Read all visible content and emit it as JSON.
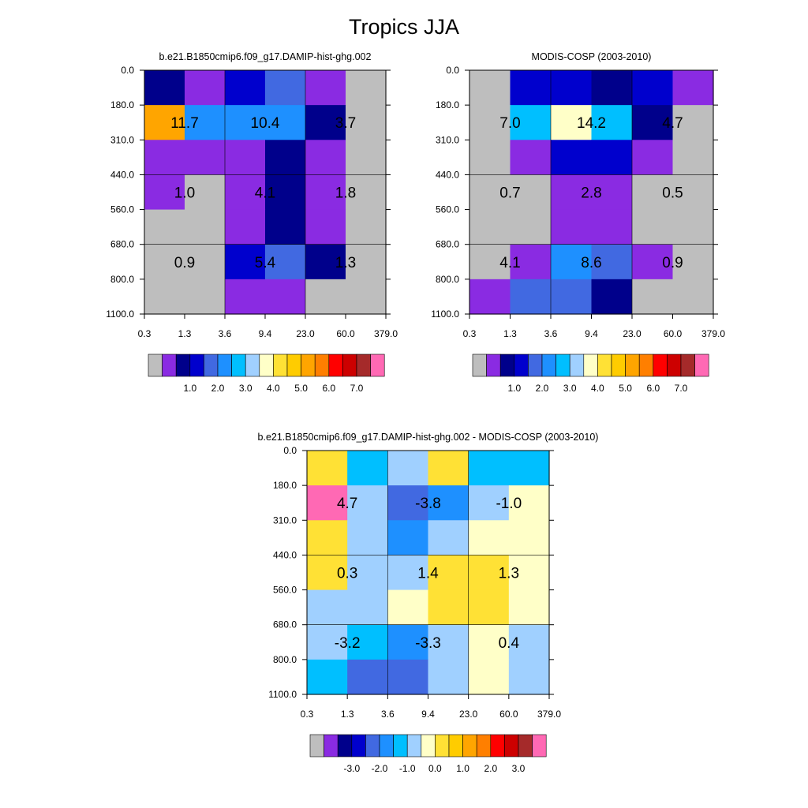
{
  "figure": {
    "title": "Tropics JJA"
  },
  "palettes": {
    "abs": [
      "#bebebe",
      "#8a2be2",
      "#00008b",
      "#0000cd",
      "#4169e1",
      "#1e90ff",
      "#00bfff",
      "#a0d0ff",
      "#ffffc8",
      "#ffe135",
      "#ffcc00",
      "#ffa500",
      "#ff7f00",
      "#ff0000",
      "#cd0000",
      "#a52a2a",
      "#ff69b4"
    ],
    "diff": [
      "#bebebe",
      "#8a2be2",
      "#00008b",
      "#0000cd",
      "#4169e1",
      "#1e90ff",
      "#00bfff",
      "#a0d0ff",
      "#ffffc8",
      "#ffe135",
      "#ffcc00",
      "#ffa500",
      "#ff7f00",
      "#ff0000",
      "#cd0000",
      "#a52a2a",
      "#ff69b4"
    ]
  },
  "chart_data": [
    {
      "type": "heatmap",
      "id": "model",
      "title": "b.e21.B1850cmip6.f09_g17.DAMIP-hist-ghg.002",
      "x_ticks": [
        "0.3",
        "1.3",
        "3.6",
        "9.4",
        "23.0",
        "60.0",
        "379.0"
      ],
      "y_ticks": [
        "0.0",
        "180.0",
        "310.0",
        "440.0",
        "560.0",
        "680.0",
        "800.0",
        "1100.0"
      ],
      "cells": [
        [
          2,
          1,
          3,
          4,
          1,
          0
        ],
        [
          11,
          5,
          5,
          5,
          2,
          0
        ],
        [
          1,
          1,
          1,
          2,
          1,
          0
        ],
        [
          1,
          0,
          1,
          2,
          1,
          0
        ],
        [
          0,
          0,
          1,
          2,
          1,
          0
        ],
        [
          0,
          0,
          3,
          4,
          2,
          0
        ],
        [
          0,
          0,
          1,
          1,
          0,
          0
        ]
      ],
      "box_labels": [
        "11.7",
        "10.4",
        "3.7",
        "1.0",
        "4.1",
        "1.8",
        "0.9",
        "5.4",
        "1.3"
      ],
      "colorbar_palette": "abs",
      "colorbar_labels": [
        "1.0",
        "2.0",
        "3.0",
        "4.0",
        "5.0",
        "6.0",
        "7.0"
      ]
    },
    {
      "type": "heatmap",
      "id": "obs",
      "title": "MODIS-COSP (2003-2010)",
      "x_ticks": [
        "0.3",
        "1.3",
        "3.6",
        "9.4",
        "23.0",
        "60.0",
        "379.0"
      ],
      "y_ticks": [
        "0.0",
        "180.0",
        "310.0",
        "440.0",
        "560.0",
        "680.0",
        "800.0",
        "1100.0"
      ],
      "cells": [
        [
          0,
          3,
          3,
          2,
          3,
          1
        ],
        [
          0,
          6,
          8,
          6,
          2,
          0
        ],
        [
          0,
          1,
          3,
          3,
          1,
          0
        ],
        [
          0,
          0,
          1,
          1,
          0,
          0
        ],
        [
          0,
          0,
          1,
          1,
          0,
          0
        ],
        [
          0,
          1,
          5,
          4,
          1,
          0
        ],
        [
          1,
          4,
          4,
          2,
          0,
          0
        ]
      ],
      "box_labels": [
        "7.0",
        "14.2",
        "4.7",
        "0.7",
        "2.8",
        "0.5",
        "4.1",
        "8.6",
        "0.9"
      ],
      "colorbar_palette": "abs",
      "colorbar_labels": [
        "1.0",
        "2.0",
        "3.0",
        "4.0",
        "5.0",
        "6.0",
        "7.0"
      ]
    },
    {
      "type": "heatmap",
      "id": "diff",
      "title": "b.e21.B1850cmip6.f09_g17.DAMIP-hist-ghg.002 - MODIS-COSP (2003-2010)",
      "x_ticks": [
        "0.3",
        "1.3",
        "3.6",
        "9.4",
        "23.0",
        "60.0",
        "379.0"
      ],
      "y_ticks": [
        "0.0",
        "180.0",
        "310.0",
        "440.0",
        "560.0",
        "680.0",
        "800.0",
        "1100.0"
      ],
      "cells": [
        [
          9,
          6,
          7,
          9,
          6,
          6
        ],
        [
          16,
          7,
          4,
          5,
          7,
          8
        ],
        [
          9,
          7,
          5,
          7,
          8,
          8
        ],
        [
          9,
          7,
          7,
          9,
          9,
          8
        ],
        [
          7,
          7,
          8,
          9,
          9,
          8
        ],
        [
          7,
          6,
          5,
          7,
          8,
          7
        ],
        [
          6,
          4,
          4,
          7,
          8,
          7
        ]
      ],
      "box_labels": [
        "4.7",
        "-3.8",
        "-1.0",
        "0.3",
        "1.4",
        "1.3",
        "-3.2",
        "-3.3",
        "0.4"
      ],
      "colorbar_palette": "diff",
      "colorbar_labels": [
        "-3.0",
        "-2.0",
        "-1.0",
        "0.0",
        "1.0",
        "2.0",
        "3.0"
      ]
    }
  ]
}
